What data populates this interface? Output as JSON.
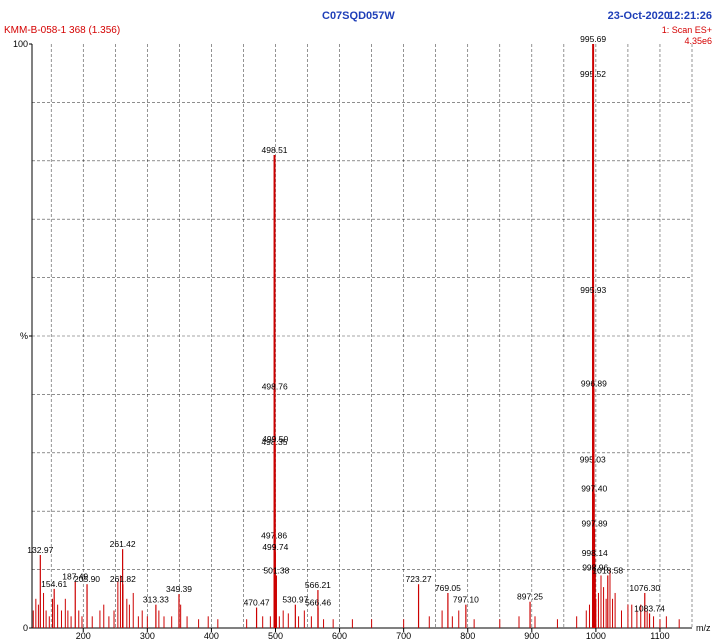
{
  "header": {
    "sample_id": "KMM-B-058-1 368 (1.356)",
    "run_id": "C07SQD057W",
    "date": "23-Oct-2020",
    "time": "12:21:26",
    "scan_mode": "1: Scan ES+",
    "base_intensity": "4.35e6"
  },
  "colors": {
    "trace": "#cc0000",
    "axis": "#000000",
    "grid": "#000000",
    "header_blue": "#1f3fb8",
    "header_red": "#d40000"
  },
  "chart_data": {
    "type": "bar",
    "title": "C07SQD057W",
    "xlabel": "m/z",
    "ylabel": "%",
    "xlim": [
      120,
      1150
    ],
    "ylim": [
      0,
      100
    ],
    "x_ticks": [
      200,
      300,
      400,
      500,
      600,
      700,
      800,
      900,
      1000,
      1100
    ],
    "y_ticks": [
      {
        "value": 0,
        "label": "0"
      },
      {
        "value": 50,
        "label": "%"
      },
      {
        "value": 100,
        "label": "100"
      }
    ],
    "grid": true,
    "peaks": [
      {
        "mz": 132.97,
        "intensity": 12.5,
        "label": "132.97"
      },
      {
        "mz": 154.61,
        "intensity": 6.7,
        "label": "154.61"
      },
      {
        "mz": 187.49,
        "intensity": 8.0,
        "label": "187.49"
      },
      {
        "mz": 205.9,
        "intensity": 7.5,
        "label": "205.90"
      },
      {
        "mz": 261.42,
        "intensity": 13.5,
        "label": "261.42"
      },
      {
        "mz": 261.82,
        "intensity": 7.5,
        "label": "261.82"
      },
      {
        "mz": 313.33,
        "intensity": 4.0,
        "label": "313.33"
      },
      {
        "mz": 349.39,
        "intensity": 5.8,
        "label": "349.39"
      },
      {
        "mz": 470.47,
        "intensity": 3.5,
        "label": "470.47"
      },
      {
        "mz": 497.86,
        "intensity": 15.0,
        "label": "497.86"
      },
      {
        "mz": 498.35,
        "intensity": 31.0,
        "label": "498.35"
      },
      {
        "mz": 498.51,
        "intensity": 81.0,
        "label": "498.51"
      },
      {
        "mz": 498.76,
        "intensity": 40.5,
        "label": "498.76"
      },
      {
        "mz": 499.5,
        "intensity": 31.5,
        "label": "499.50"
      },
      {
        "mz": 499.74,
        "intensity": 13.0,
        "label": "499.74"
      },
      {
        "mz": 501.38,
        "intensity": 9.0,
        "label": "501.38"
      },
      {
        "mz": 530.97,
        "intensity": 4.0,
        "label": "530.97"
      },
      {
        "mz": 566.21,
        "intensity": 6.5,
        "label": "566.21"
      },
      {
        "mz": 566.46,
        "intensity": 3.5,
        "label": "566.46"
      },
      {
        "mz": 723.27,
        "intensity": 7.5,
        "label": "723.27"
      },
      {
        "mz": 769.05,
        "intensity": 6.0,
        "label": "769.05"
      },
      {
        "mz": 797.1,
        "intensity": 4.0,
        "label": "797.10"
      },
      {
        "mz": 897.25,
        "intensity": 4.5,
        "label": "897.25"
      },
      {
        "mz": 995.03,
        "intensity": 28.0,
        "label": "995.03"
      },
      {
        "mz": 995.52,
        "intensity": 94.0,
        "label": "995.52"
      },
      {
        "mz": 995.69,
        "intensity": 100.0,
        "label": "995.69"
      },
      {
        "mz": 995.93,
        "intensity": 57.0,
        "label": "995.93"
      },
      {
        "mz": 996.89,
        "intensity": 41.0,
        "label": "996.89"
      },
      {
        "mz": 997.4,
        "intensity": 23.0,
        "label": "997.40"
      },
      {
        "mz": 997.89,
        "intensity": 17.0,
        "label": "997.89"
      },
      {
        "mz": 998.14,
        "intensity": 12.0,
        "label": "998.14"
      },
      {
        "mz": 998.96,
        "intensity": 9.5,
        "label": "998.96"
      },
      {
        "mz": 1018.58,
        "intensity": 9.0,
        "label": "1018.58"
      },
      {
        "mz": 1076.3,
        "intensity": 6.0,
        "label": "1076.30"
      },
      {
        "mz": 1083.74,
        "intensity": 2.5,
        "label": "1083.74"
      }
    ],
    "minor_peaks": [
      [
        122,
        3
      ],
      [
        126,
        5
      ],
      [
        130,
        4
      ],
      [
        138,
        6
      ],
      [
        142,
        3
      ],
      [
        147,
        2
      ],
      [
        152,
        5
      ],
      [
        160,
        4
      ],
      [
        166,
        3
      ],
      [
        172,
        5
      ],
      [
        176,
        3
      ],
      [
        181,
        2
      ],
      [
        193,
        3
      ],
      [
        198,
        2
      ],
      [
        214,
        2
      ],
      [
        226,
        3
      ],
      [
        232,
        4
      ],
      [
        240,
        2
      ],
      [
        248,
        3
      ],
      [
        254,
        8
      ],
      [
        258,
        9
      ],
      [
        268,
        5
      ],
      [
        272,
        4
      ],
      [
        278,
        6
      ],
      [
        286,
        2
      ],
      [
        292,
        3
      ],
      [
        300,
        2
      ],
      [
        318,
        3
      ],
      [
        326,
        2
      ],
      [
        338,
        2
      ],
      [
        352,
        4
      ],
      [
        362,
        2
      ],
      [
        380,
        1.5
      ],
      [
        395,
        2
      ],
      [
        410,
        1.5
      ],
      [
        455,
        1.5
      ],
      [
        480,
        2
      ],
      [
        492,
        2
      ],
      [
        506,
        2
      ],
      [
        512,
        3
      ],
      [
        520,
        2.5
      ],
      [
        536,
        2
      ],
      [
        545,
        3
      ],
      [
        556,
        2
      ],
      [
        575,
        1.5
      ],
      [
        590,
        1.5
      ],
      [
        620,
        1.5
      ],
      [
        650,
        1.5
      ],
      [
        700,
        1.5
      ],
      [
        740,
        2
      ],
      [
        760,
        3
      ],
      [
        776,
        2
      ],
      [
        786,
        3
      ],
      [
        810,
        1.5
      ],
      [
        850,
        1.5
      ],
      [
        880,
        2
      ],
      [
        905,
        2
      ],
      [
        940,
        1.5
      ],
      [
        970,
        2
      ],
      [
        985,
        3
      ],
      [
        990,
        4
      ],
      [
        1000,
        5
      ],
      [
        1004,
        6
      ],
      [
        1008,
        9
      ],
      [
        1012,
        7
      ],
      [
        1016,
        5
      ],
      [
        1022,
        10
      ],
      [
        1026,
        5
      ],
      [
        1030,
        6
      ],
      [
        1040,
        3
      ],
      [
        1050,
        4
      ],
      [
        1056,
        4
      ],
      [
        1064,
        3
      ],
      [
        1070,
        4
      ],
      [
        1080,
        3
      ],
      [
        1090,
        2
      ],
      [
        1100,
        1.5
      ],
      [
        1110,
        2
      ],
      [
        1130,
        1.5
      ]
    ]
  }
}
